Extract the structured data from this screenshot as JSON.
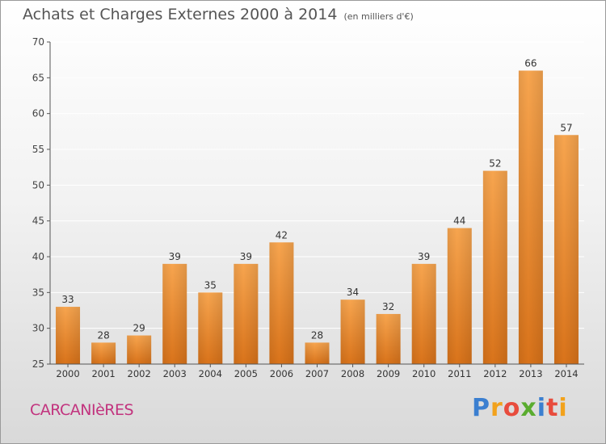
{
  "title": "Achats et Charges Externes 2000 à 2014",
  "subtitle": "(en milliers d'€)",
  "commune": "CARCANIèRES",
  "brand": {
    "letters": [
      "P",
      "r",
      "o",
      "x",
      "i",
      "t",
      "i"
    ],
    "colors": [
      "#3b7fd0",
      "#f2a21c",
      "#e84c3d",
      "#5aac2f",
      "#3b7fd0",
      "#e84c3d",
      "#f2a21c"
    ]
  },
  "chart_data": {
    "type": "bar",
    "title": "Achats et Charges Externes 2000 à 2014",
    "subtitle": "(en milliers d'€)",
    "categories": [
      "2000",
      "2001",
      "2002",
      "2003",
      "2004",
      "2005",
      "2006",
      "2007",
      "2008",
      "2009",
      "2010",
      "2011",
      "2012",
      "2013",
      "2014"
    ],
    "values": [
      33,
      28,
      29,
      39,
      35,
      39,
      42,
      28,
      34,
      32,
      39,
      44,
      52,
      66,
      57
    ],
    "ylim": [
      25,
      70
    ],
    "yticks": [
      25,
      30,
      35,
      40,
      45,
      50,
      55,
      60,
      65,
      70
    ],
    "grid": true,
    "colors": {
      "bar_top": "#f7a54f",
      "bar_bottom": "#d9731a",
      "grid": "#ffffff",
      "axis": "#555555"
    }
  }
}
